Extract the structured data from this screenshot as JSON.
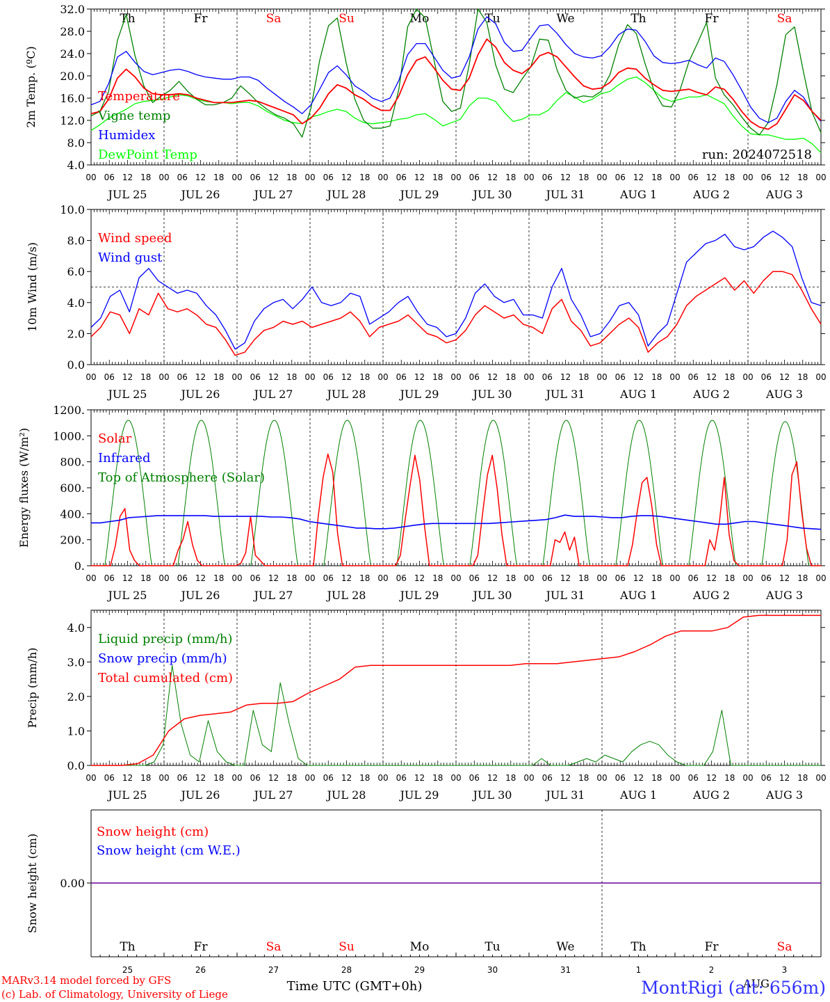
{
  "chart_data": [
    {
      "type": "line",
      "ylabel": "2m Temp. (ºC)",
      "ylim": [
        4,
        32
      ],
      "yticks": [
        "4.0",
        "8.0",
        "12.0",
        "16.0",
        "20.0",
        "24.0",
        "28.0",
        "32.0"
      ],
      "run_label": "run: 2024072518",
      "series": [
        {
          "name": "Temperature",
          "color": "#ff0000",
          "values": [
            13.2,
            13.6,
            15.8,
            19.6,
            21.2,
            19.8,
            17.8,
            16.8,
            16.6,
            16.6,
            16.8,
            16.6,
            16,
            15.6,
            15.2,
            15.2,
            15.2,
            15.4,
            15.6,
            15.4,
            14.8,
            14.2,
            13.6,
            13,
            11.4,
            12.4,
            14.2,
            16.8,
            18.4,
            17.8,
            16.6,
            15.8,
            14.6,
            13.8,
            13.8,
            16.4,
            20.2,
            22.8,
            23.4,
            21.4,
            19.2,
            17.6,
            17.4,
            19.6,
            23.8,
            26.6,
            25.2,
            22.4,
            21,
            20.4,
            21.6,
            23.6,
            24.2,
            23.4,
            21.6,
            19.8,
            18.2,
            17.6,
            17.8,
            18.8,
            20.6,
            21.4,
            21.2,
            19.6,
            18.4,
            17.4,
            17.2,
            17.4,
            17.6,
            17,
            16.6,
            18,
            17.6,
            15.8,
            13.6,
            11.8,
            10.8,
            10.4,
            11.4,
            14,
            16.6,
            15.6,
            13.6,
            12
          ]
        },
        {
          "name": "Vigne temp",
          "color": "#008000",
          "values": [
            12.8,
            13.6,
            17.2,
            26.4,
            31,
            23.6,
            18.2,
            15.2,
            16.4,
            17.4,
            19,
            17.2,
            15.8,
            14.8,
            14.8,
            15.2,
            16,
            18.2,
            16.8,
            15.2,
            14,
            13,
            12.4,
            11.4,
            9,
            14.2,
            22.8,
            29,
            30.4,
            22.4,
            15.8,
            12,
            10.6,
            10.6,
            11,
            17.6,
            28.8,
            32,
            30.4,
            22.8,
            15.4,
            13.6,
            14.2,
            22,
            32,
            29.6,
            22,
            17.6,
            17,
            19.4,
            21.6,
            26.6,
            26.4,
            21,
            17.4,
            16,
            16.4,
            16.2,
            17.2,
            20.2,
            25.6,
            29.2,
            27.6,
            22.2,
            17.4,
            14.6,
            14.4,
            17.6,
            22.6,
            26,
            29.6,
            19.6,
            16.6,
            14.8,
            12.6,
            10.6,
            9.4,
            11.6,
            18.4,
            27.4,
            28.8,
            20.8,
            13.4,
            9.8
          ]
        },
        {
          "name": "Humidex",
          "color": "#0000ff",
          "values": [
            14.8,
            15.4,
            18.6,
            23.4,
            24.4,
            22.4,
            20.8,
            20.2,
            20.6,
            21,
            21.2,
            20.8,
            20.2,
            19.8,
            19.6,
            19.4,
            19.4,
            19.8,
            19.8,
            19.2,
            17.8,
            16.6,
            15.4,
            14.4,
            13.2,
            14.8,
            17.6,
            20.6,
            21.8,
            20.2,
            18.2,
            17.2,
            16,
            15.4,
            16,
            19.2,
            23.8,
            25.8,
            25.8,
            23.4,
            21,
            19.6,
            20,
            23.4,
            28.4,
            30.6,
            29.4,
            26,
            24.4,
            24.6,
            26.8,
            29,
            29.2,
            27.6,
            25.6,
            24,
            23.4,
            23.2,
            23.6,
            25.2,
            27.4,
            28.4,
            28.2,
            26.2,
            23.6,
            22.4,
            22.2,
            22.4,
            22.8,
            22,
            21.4,
            23.2,
            22.6,
            20.2,
            17.4,
            14.4,
            12.4,
            11.6,
            12.4,
            15.4,
            17.4,
            16.2,
            13.6,
            11.8
          ]
        },
        {
          "name": "DewPoint Temp",
          "color": "#00ff00",
          "values": [
            10.2,
            11.2,
            12.4,
            13.2,
            14,
            15,
            15.4,
            15.6,
            15.8,
            16.2,
            16.6,
            16.4,
            15.8,
            15.4,
            15.2,
            15.2,
            15,
            15.2,
            15.2,
            14.6,
            13.6,
            12.8,
            12,
            11.6,
            11.4,
            12.6,
            13,
            13.6,
            14,
            13.6,
            12.4,
            11.6,
            11.4,
            11.6,
            11.8,
            12.2,
            12.4,
            13,
            13.2,
            12.2,
            11,
            11.6,
            12.2,
            14.6,
            16,
            16,
            15.4,
            13.4,
            11.8,
            12.2,
            13,
            13,
            13.8,
            15.6,
            17,
            16.2,
            15.2,
            15.8,
            16.8,
            17.2,
            18.4,
            19.4,
            19.8,
            18.8,
            17.4,
            16,
            15.4,
            15.8,
            16.2,
            16.2,
            16.6,
            15.8,
            15,
            12.8,
            11,
            9.6,
            9.4,
            9.4,
            9,
            8.6,
            8.6,
            8.8,
            7.8,
            6.2
          ]
        }
      ]
    },
    {
      "type": "line",
      "ylabel": "10m Wind (m/s)",
      "ylim": [
        0,
        10
      ],
      "yticks": [
        "0.0",
        "2.0",
        "4.0",
        "6.0",
        "8.0",
        "10.0"
      ],
      "reference_line": 5,
      "series": [
        {
          "name": "Wind speed",
          "color": "#ff0000",
          "values": [
            1.8,
            2.4,
            3.4,
            3.2,
            2,
            3.6,
            3.2,
            4.6,
            3.6,
            3.4,
            3.6,
            3.2,
            2.6,
            2.4,
            1.6,
            0.6,
            0.8,
            1.6,
            2.2,
            2.4,
            2.8,
            2.6,
            2.8,
            2.4,
            2.6,
            2.8,
            3,
            3.4,
            2.8,
            1.8,
            2.4,
            2.6,
            2.8,
            3.2,
            2.6,
            2,
            1.8,
            1.4,
            1.6,
            2.2,
            3.2,
            3.8,
            3.4,
            3,
            3.2,
            2.6,
            2.4,
            2,
            3.6,
            4.2,
            2.8,
            2.2,
            1.2,
            1.4,
            2,
            2.6,
            3,
            2.4,
            0.8,
            1.4,
            1.8,
            2.6,
            3.8,
            4.4,
            4.8,
            5.2,
            5.6,
            4.8,
            5.4,
            4.6,
            5.4,
            6,
            6,
            5.8,
            4.8,
            3.6,
            2.6
          ]
        },
        {
          "name": "Wind gust",
          "color": "#0000ff",
          "values": [
            2.4,
            3,
            4.4,
            4.8,
            3.4,
            5.6,
            6.2,
            5.4,
            5,
            4.6,
            4.8,
            4.6,
            3.8,
            3.2,
            2.2,
            1,
            1.4,
            2.8,
            3.6,
            4,
            4.2,
            3.6,
            4.2,
            5,
            4,
            3.8,
            4,
            4.6,
            4.4,
            2.6,
            3,
            3.4,
            4,
            4.4,
            3.4,
            2.6,
            2.4,
            1.8,
            2,
            3,
            4.6,
            5.2,
            4.4,
            4,
            4.2,
            3.2,
            3.2,
            3,
            5,
            6.2,
            4.2,
            3.2,
            1.8,
            2,
            2.8,
            3.8,
            4,
            3.2,
            1.2,
            2,
            2.6,
            4.6,
            6.6,
            7.2,
            7.8,
            8,
            8.4,
            7.6,
            7.4,
            7.6,
            8.2,
            8.6,
            8.2,
            7.6,
            5.6,
            4,
            3.8
          ]
        }
      ]
    },
    {
      "type": "line",
      "ylabel": "Energy fluxes (W/m²)",
      "ylim": [
        0,
        1200
      ],
      "yticks": [
        "0.",
        "200.",
        "400.",
        "600.",
        "800.",
        "1000.",
        "1200."
      ],
      "series": [
        {
          "name": "Solar",
          "color": "#ff0000",
          "values": [
            0,
            0,
            0,
            0,
            0,
            150,
            380,
            440,
            120,
            40,
            0,
            0,
            0,
            0,
            0,
            0,
            0,
            0,
            120,
            200,
            340,
            160,
            40,
            0,
            0,
            0,
            0,
            0,
            0,
            0,
            0,
            20,
            100,
            380,
            80,
            40,
            0,
            0,
            0,
            0,
            0,
            0,
            0,
            0,
            0,
            0,
            0,
            380,
            680,
            860,
            720,
            250,
            0,
            0,
            0,
            0,
            0,
            0,
            0,
            0,
            0,
            0,
            0,
            0,
            80,
            360,
            620,
            850,
            660,
            300,
            0,
            0,
            0,
            0,
            0,
            0,
            0,
            0,
            0,
            0,
            80,
            400,
            700,
            850,
            600,
            240,
            0,
            0,
            0,
            0,
            0,
            0,
            0,
            0,
            0,
            0,
            200,
            180,
            260,
            120,
            220,
            0,
            0,
            0,
            0,
            0,
            0,
            0,
            0,
            0,
            0,
            0,
            160,
            420,
            640,
            680,
            460,
            160,
            0,
            0,
            0,
            0,
            0,
            0,
            0,
            0,
            0,
            0,
            200,
            120,
            340,
            680,
            240,
            40,
            0,
            0,
            0,
            0,
            0,
            0,
            0,
            0,
            0,
            0,
            200,
            700,
            800,
            420,
            140,
            0,
            0,
            0
          ]
        },
        {
          "name": "Infrared",
          "color": "#0000ff",
          "values": [
            330,
            330,
            340,
            350,
            370,
            375,
            380,
            385,
            385,
            385,
            385,
            385,
            385,
            380,
            380,
            380,
            380,
            380,
            380,
            375,
            375,
            370,
            360,
            340,
            330,
            320,
            310,
            300,
            290,
            290,
            285,
            285,
            290,
            300,
            310,
            320,
            325,
            325,
            325,
            325,
            325,
            325,
            325,
            330,
            335,
            340,
            345,
            350,
            355,
            370,
            390,
            380,
            380,
            380,
            375,
            370,
            370,
            380,
            385,
            385,
            380,
            370,
            360,
            350,
            340,
            330,
            320,
            320,
            330,
            340,
            340,
            330,
            320,
            310,
            300,
            290,
            285,
            280
          ]
        },
        {
          "name": "Top of Atmosphere (Solar)",
          "color": "#008000",
          "values": [
            1120,
            1120,
            1120,
            1120,
            1120,
            1120,
            1120,
            1120,
            1120,
            1110
          ]
        }
      ]
    },
    {
      "type": "line",
      "ylabel": "Precip (mm/h)",
      "ylim": [
        0,
        4.5
      ],
      "yticks": [
        "0.0",
        "1.0",
        "2.0",
        "3.0",
        "4.0"
      ],
      "series": [
        {
          "name": "Liquid precip (mm/h)",
          "color": "#008000",
          "values": [
            0,
            0,
            0,
            0,
            0,
            0,
            0,
            0.1,
            0.6,
            2.9,
            1.2,
            0.3,
            0.1,
            1.3,
            0.4,
            0.1,
            0,
            0,
            1.6,
            0.6,
            0.4,
            2.4,
            1.2,
            0.2,
            0,
            0,
            0,
            0,
            0,
            0,
            0,
            0,
            0,
            0,
            0,
            0,
            0,
            0,
            0,
            0,
            0,
            0,
            0,
            0,
            0,
            0,
            0,
            0,
            0,
            0,
            0.2,
            0,
            0,
            0,
            0.1,
            0.2,
            0.1,
            0.3,
            0.2,
            0.1,
            0.4,
            0.6,
            0.7,
            0.6,
            0.3,
            0.1,
            0,
            0,
            0,
            0.4,
            1.6,
            0,
            0,
            0,
            0,
            0,
            0,
            0,
            0,
            0,
            0,
            0
          ]
        },
        {
          "name": "Snow precip (mm/h)",
          "color": "#0000ff",
          "values": []
        },
        {
          "name": "Total cumulated (cm)",
          "color": "#ff0000",
          "values": [
            0,
            0,
            0,
            0.05,
            0.3,
            1,
            1.35,
            1.45,
            1.5,
            1.55,
            1.75,
            1.8,
            1.8,
            1.85,
            2.1,
            2.3,
            2.5,
            2.85,
            2.9,
            2.9,
            2.9,
            2.9,
            2.9,
            2.9,
            2.9,
            2.9,
            2.9,
            2.9,
            2.95,
            2.95,
            2.95,
            3,
            3.05,
            3.1,
            3.15,
            3.3,
            3.5,
            3.75,
            3.9,
            3.9,
            3.9,
            4,
            4.3,
            4.35,
            4.35,
            4.35,
            4.35,
            4.35
          ]
        }
      ]
    },
    {
      "type": "line",
      "ylabel": "Snow height (cm)",
      "yticks": [
        "0.00"
      ],
      "series": [
        {
          "name": "Snow height (cm)",
          "color": "#ff0000",
          "values": [
            0,
            0
          ]
        },
        {
          "name": "Snow height (cm W.E.)",
          "color": "#0000ff",
          "values": [
            0,
            0
          ]
        }
      ]
    }
  ],
  "axis": {
    "hour_ticks": [
      "00",
      "06",
      "12",
      "18"
    ],
    "dates": [
      "JUL 25",
      "JUL 26",
      "JUL 27",
      "JUL 28",
      "JUL 29",
      "JUL 30",
      "JUL 31",
      "AUG  1",
      "AUG  2",
      "AUG  3"
    ],
    "weekdays": [
      {
        "label": "Th",
        "color": "#000000"
      },
      {
        "label": "Fr",
        "color": "#000000"
      },
      {
        "label": "Sa",
        "color": "#ff0000"
      },
      {
        "label": "Su",
        "color": "#ff0000"
      },
      {
        "label": "Mo",
        "color": "#000000"
      },
      {
        "label": "Tu",
        "color": "#000000"
      },
      {
        "label": "We",
        "color": "#000000"
      },
      {
        "label": "Th",
        "color": "#000000"
      },
      {
        "label": "Fr",
        "color": "#000000"
      },
      {
        "label": "Sa",
        "color": "#ff0000"
      }
    ],
    "day_numbers": [
      "25",
      "26",
      "27",
      "28",
      "29",
      "30",
      "31",
      "1",
      "2",
      "3"
    ],
    "xlabel": "Time UTC (GMT+0h)",
    "month_label": "AUG"
  },
  "footer": {
    "credit_line1": "MARv3.14 model forced by GFS",
    "credit_line2": "(c) Lab. of Climatology, University of Liege",
    "station": "MontRigi (alt: 656m)"
  }
}
